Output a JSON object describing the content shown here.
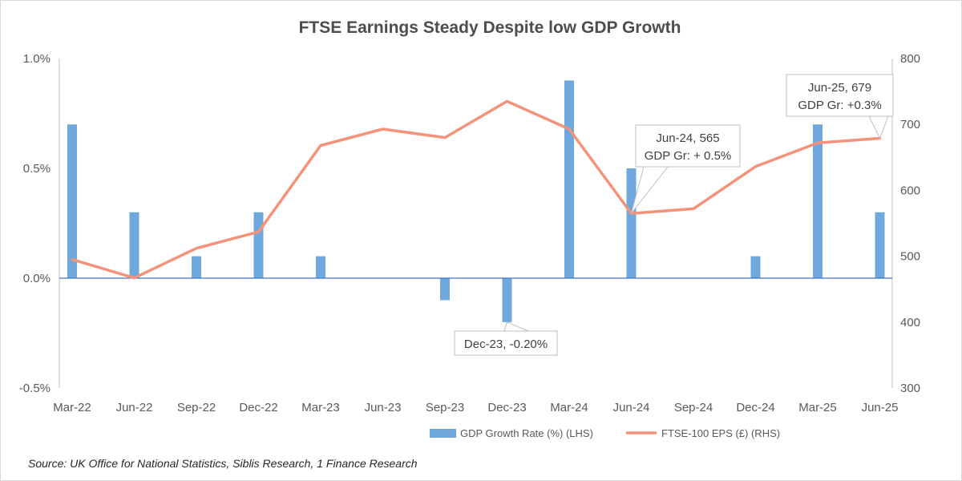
{
  "chart_data": {
    "type": "bar+line",
    "title": "FTSE Earnings Steady Despite low GDP Growth",
    "categories": [
      "Mar-22",
      "Jun-22",
      "Sep-22",
      "Dec-22",
      "Mar-23",
      "Jun-23",
      "Sep-23",
      "Dec-23",
      "Mar-24",
      "Jun-24",
      "Sep-24",
      "Dec-24",
      "Mar-25",
      "Jun-25"
    ],
    "series": [
      {
        "name": "GDP Growth Rate (%) (LHS)",
        "type": "bar",
        "axis": "left",
        "color": "#6fa8dc",
        "values": [
          0.7,
          0.3,
          0.1,
          0.3,
          0.1,
          0.0,
          -0.1,
          -0.2,
          0.9,
          0.5,
          0.0,
          0.1,
          0.7,
          0.3
        ]
      },
      {
        "name": "FTSE-100 EPS (£) (RHS)",
        "type": "line",
        "axis": "right",
        "color": "#f4937a",
        "values": [
          495,
          467,
          512,
          537,
          668,
          693,
          680,
          735,
          693,
          565,
          572,
          636,
          672,
          679
        ]
      }
    ],
    "y_left": {
      "min": -0.5,
      "max": 1.0,
      "ticks": [
        "1.0%",
        "0.5%",
        "0.0%",
        "-0.5%"
      ],
      "tick_values": [
        1.0,
        0.5,
        0.0,
        -0.5
      ]
    },
    "y_right": {
      "min": 300,
      "max": 800,
      "ticks": [
        "800",
        "700",
        "600",
        "500",
        "400",
        "300"
      ],
      "tick_values": [
        800,
        700,
        600,
        500,
        400,
        300
      ]
    },
    "annotations": [
      {
        "category_index": 7,
        "series": 0,
        "line1": "Dec-23, -0.20%",
        "line2": ""
      },
      {
        "category_index": 9,
        "series": 1,
        "line1": "Jun-24, 565",
        "line2": "GDP Gr: + 0.5%"
      },
      {
        "category_index": 13,
        "series": 1,
        "line1": "Jun-25, 679",
        "line2": "GDP Gr: +0.3%"
      }
    ],
    "legend_position": "bottom",
    "grid": false,
    "source": "Source: UK Office for National Statistics, Siblis Research, 1 Finance Research"
  }
}
